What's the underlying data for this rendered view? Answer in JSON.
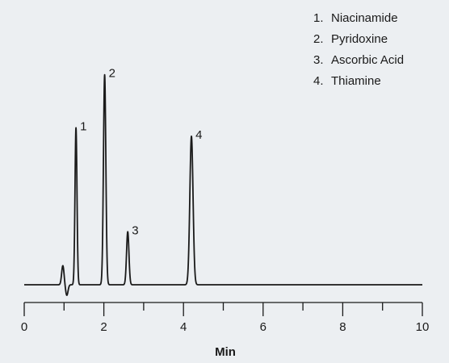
{
  "chart_data": {
    "type": "line",
    "title": "",
    "xlabel": "Min",
    "ylabel": "",
    "xlim": [
      0,
      10
    ],
    "ylim": [
      0,
      100
    ],
    "x_ticks": [
      0,
      2,
      4,
      6,
      8,
      10
    ],
    "x_minor_ticks": [
      1,
      3,
      5,
      7,
      9
    ],
    "grid": false,
    "legend_position": "top-right",
    "legend": [
      {
        "number": "1.",
        "name": "Niacinamide"
      },
      {
        "number": "2.",
        "name": "Pyridoxine"
      },
      {
        "number": "3.",
        "name": "Ascorbic Acid"
      },
      {
        "number": "4.",
        "name": "Thiamine"
      }
    ],
    "peaks": [
      {
        "label": "1",
        "x": 1.3,
        "height": 74,
        "width": 0.025
      },
      {
        "label": "2",
        "x": 2.02,
        "height": 99,
        "width": 0.03
      },
      {
        "label": "3",
        "x": 2.6,
        "height": 25,
        "width": 0.03
      },
      {
        "label": "4",
        "x": 4.2,
        "height": 70,
        "width": 0.04
      }
    ],
    "baseline_disturbance": [
      {
        "x": 0.97,
        "height": 9,
        "width": 0.03
      },
      {
        "x": 1.07,
        "height": -5,
        "width": 0.03
      }
    ],
    "line_color": "#1a1a1a"
  }
}
